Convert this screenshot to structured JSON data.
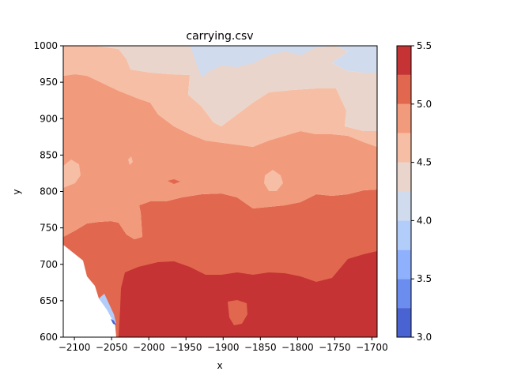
{
  "chart_data": {
    "type": "contour",
    "title": "carrying.csv",
    "xlabel": "x",
    "ylabel": "y",
    "xlim": [
      -2115,
      -1693
    ],
    "ylim": [
      600,
      1000
    ],
    "xticks": [
      -2100,
      -2050,
      -2000,
      -1950,
      -1900,
      -1850,
      -1800,
      -1750,
      -1700
    ],
    "xtick_labels": [
      "−2100",
      "−2050",
      "−2000",
      "−1950",
      "−1900",
      "−1850",
      "−1800",
      "−1750",
      "−1700"
    ],
    "yticks": [
      600,
      650,
      700,
      750,
      800,
      850,
      900,
      950,
      1000
    ],
    "ytick_labels": [
      "600",
      "650",
      "700",
      "750",
      "800",
      "850",
      "900",
      "950",
      "1000"
    ],
    "colormap": "coolwarm",
    "levels": [
      3.0,
      3.25,
      3.5,
      3.75,
      4.0,
      4.25,
      4.5,
      4.75,
      5.0,
      5.25,
      5.5
    ],
    "level_colors": [
      "#4a63d3",
      "#6b8df0",
      "#8fb1fd",
      "#b3cdfb",
      "#d0dbee",
      "#e9d5cb",
      "#f6bea4",
      "#f29a7c",
      "#e1684f",
      "#c53334"
    ],
    "colorbar": {
      "ticks": [
        3.0,
        3.5,
        4.0,
        4.5,
        5.0,
        5.5
      ],
      "tick_labels": [
        "3.0",
        "3.5",
        "4.0",
        "4.5",
        "5.0",
        "5.5"
      ]
    },
    "regions": [
      {
        "band": "4.0–4.25",
        "description": "top edge, upper right"
      },
      {
        "band": "4.25–4.5",
        "description": "upper band"
      },
      {
        "band": "4.5–4.75",
        "description": "upper middle band"
      },
      {
        "band": "4.75–5.0",
        "description": "middle band"
      },
      {
        "band": "5.0–5.25",
        "description": "lower middle band"
      },
      {
        "band": "5.25–5.5",
        "description": "bottom right large region"
      }
    ]
  }
}
